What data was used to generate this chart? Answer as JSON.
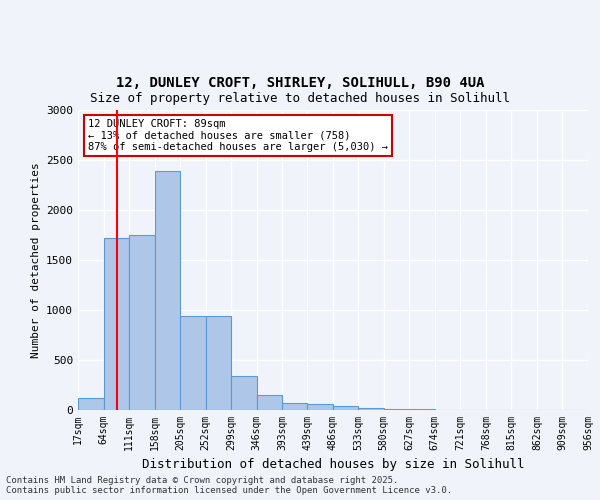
{
  "title_line1": "12, DUNLEY CROFT, SHIRLEY, SOLIHULL, B90 4UA",
  "title_line2": "Size of property relative to detached houses in Solihull",
  "xlabel": "Distribution of detached houses by size in Solihull",
  "ylabel": "Number of detached properties",
  "bin_labels": [
    "17sqm",
    "64sqm",
    "111sqm",
    "158sqm",
    "205sqm",
    "252sqm",
    "299sqm",
    "346sqm",
    "393sqm",
    "439sqm",
    "486sqm",
    "533sqm",
    "580sqm",
    "627sqm",
    "674sqm",
    "721sqm",
    "768sqm",
    "815sqm",
    "862sqm",
    "909sqm",
    "956sqm"
  ],
  "bin_edges": [
    17,
    64,
    111,
    158,
    205,
    252,
    299,
    346,
    393,
    439,
    486,
    533,
    580,
    627,
    674,
    721,
    768,
    815,
    862,
    909,
    956
  ],
  "bar_heights": [
    120,
    1720,
    1750,
    2390,
    940,
    940,
    340,
    155,
    75,
    60,
    45,
    20,
    15,
    10,
    5,
    5,
    3,
    2,
    1,
    1
  ],
  "bar_color": "#aec6e8",
  "bar_edge_color": "#5b9bd5",
  "red_line_x": 89,
  "ylim": [
    0,
    3000
  ],
  "yticks": [
    0,
    500,
    1000,
    1500,
    2000,
    2500,
    3000
  ],
  "annotation_text": "12 DUNLEY CROFT: 89sqm\n← 13% of detached houses are smaller (758)\n87% of semi-detached houses are larger (5,030) →",
  "annotation_box_color": "#ffffff",
  "annotation_box_edge": "#cc0000",
  "footer_text": "Contains HM Land Registry data © Crown copyright and database right 2025.\nContains public sector information licensed under the Open Government Licence v3.0.",
  "background_color": "#f0f4fa",
  "grid_color": "#ffffff"
}
